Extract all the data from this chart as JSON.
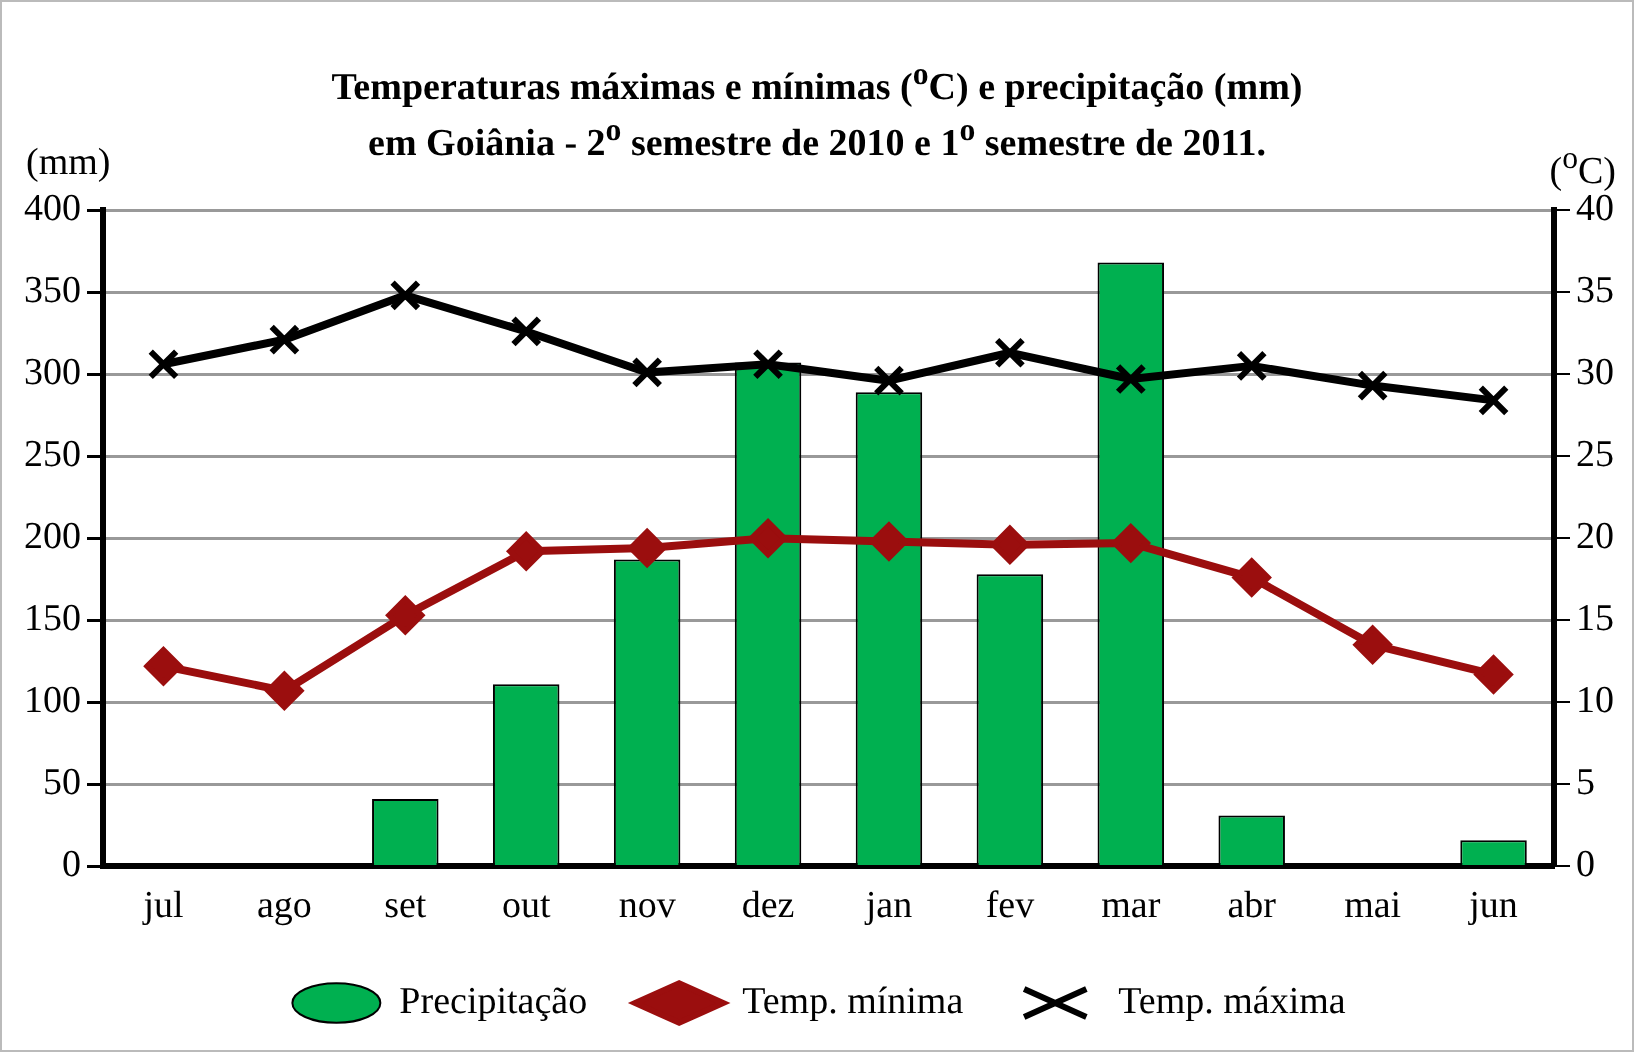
{
  "chart_data": {
    "type": "bar",
    "title": "Temperaturas máximas  e mínimas ($^{o}$C) e precipitação (mm)\nem Goiânia - 2$^{o}$ semestre de 2010 e 1$^{o}$ semestre de 2011.",
    "ylabel": "(mm)",
    "y2label": "($^{o}$C)",
    "categories": [
      "jul",
      "ago",
      "set",
      "out",
      "nov",
      "dez",
      "jan",
      "fev",
      "mar",
      "abr",
      "mai",
      "jun"
    ],
    "series": [
      {
        "name": "Precipitação",
        "color": "#00b050",
        "values": [
          0,
          0,
          41,
          111,
          187,
          307,
          289,
          178,
          368,
          31,
          0,
          16
        ]
      },
      {
        "name": "Temp. mínima",
        "type": "line",
        "axis": "y2",
        "color": "#9b0e0e",
        "marker": "diamond",
        "values": [
          12.2,
          10.7,
          15.3,
          19.2,
          19.4,
          20.0,
          19.8,
          19.6,
          19.7,
          17.6,
          13.5,
          11.7
        ]
      },
      {
        "name": "Temp. máxima",
        "type": "line",
        "axis": "y2",
        "color": "#000000",
        "marker": "cross",
        "values": [
          30.6,
          32.1,
          34.8,
          32.6,
          30.1,
          30.6,
          29.6,
          31.3,
          29.7,
          30.5,
          29.3,
          28.4
        ]
      }
    ],
    "ylim": [
      0,
      400
    ],
    "yticks": [
      0,
      50,
      100,
      150,
      200,
      250,
      300,
      350,
      400
    ],
    "y2lim": [
      0,
      40
    ],
    "y2ticks": [
      0,
      5,
      10,
      15,
      20,
      25,
      30,
      35,
      40
    ],
    "grid": "y",
    "legend": "bottom"
  }
}
